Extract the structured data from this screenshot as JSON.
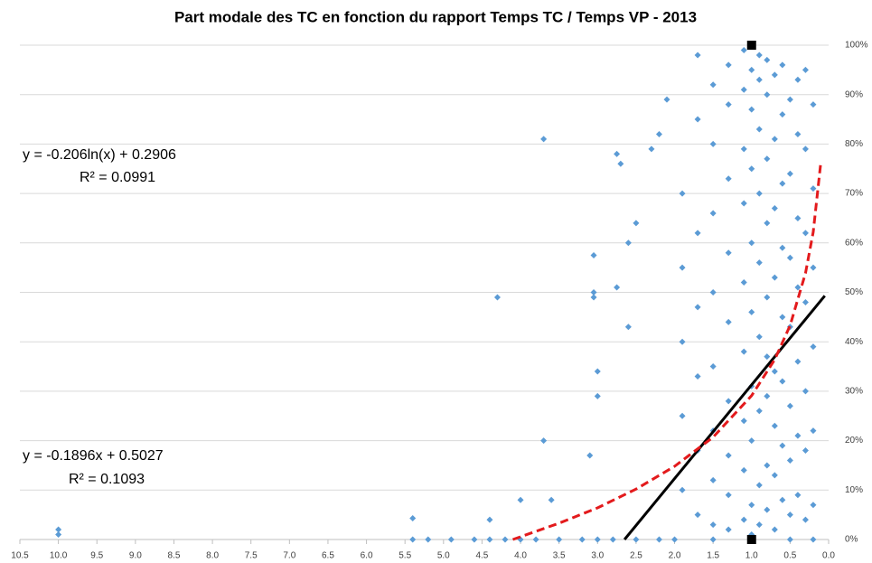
{
  "chart_data": {
    "type": "scatter",
    "title": "Part modale des TC en fonction du rapport Temps TC / Temps VP - 2013",
    "annotations": [
      "y = -0.206ln(x) + 0.2906",
      "R² = 0.0991",
      "y = -0.1896x + 0.5027",
      "R² = 0.1093"
    ],
    "xlim": [
      10.5,
      0
    ],
    "ylim": [
      0,
      100
    ],
    "grid": true,
    "xticks": [
      10.5,
      {
        "value": 10,
        "label": "10.0"
      },
      9.5,
      {
        "value": 9,
        "label": "9.0"
      },
      8.5,
      {
        "value": 8,
        "label": "8.0"
      },
      7.5,
      {
        "value": 7,
        "label": "7.0"
      },
      6.5,
      {
        "value": 6,
        "label": "6.0"
      },
      5.5,
      {
        "value": 5,
        "label": "5.0"
      },
      4.5,
      {
        "value": 4,
        "label": "4.0"
      },
      3.5,
      {
        "value": 3,
        "label": "3.0"
      },
      2.5,
      {
        "value": 2,
        "label": "2.0"
      },
      1.5,
      {
        "value": 1,
        "label": "1.0"
      },
      0.5,
      {
        "value": 0,
        "label": "0.0"
      }
    ],
    "yticks": [
      {
        "value": 0,
        "label": "0%"
      },
      {
        "value": 10,
        "label": "10%"
      },
      {
        "value": 20,
        "label": "20%"
      },
      {
        "value": 30,
        "label": "30%"
      },
      {
        "value": 40,
        "label": "40%"
      },
      {
        "value": 50,
        "label": "50%"
      },
      {
        "value": 60,
        "label": "60%"
      },
      {
        "value": 70,
        "label": "70%"
      },
      {
        "value": 80,
        "label": "80%"
      },
      {
        "value": 90,
        "label": "90%"
      },
      {
        "value": 100,
        "label": "100%"
      }
    ],
    "series": [
      {
        "mode": "markers",
        "marker": "diamond",
        "color": "#5b9bd5",
        "x": [
          10,
          10,
          5.4,
          4.3,
          3.7,
          3.05,
          3.05,
          3.05,
          2.75,
          2.7,
          2.75,
          2.3,
          2.2,
          2.1,
          1.7,
          3.0,
          3.0,
          3.1,
          3.7,
          4.0,
          4.4,
          3.6,
          2.6,
          2.6,
          2.5,
          5.4,
          5.2,
          4.9,
          4.6,
          4.4,
          4.2,
          4.0,
          3.8,
          3.5,
          3.2,
          3.0,
          2.8,
          2.5,
          2.2,
          2.0,
          1.5,
          1.0,
          0.5,
          0.2,
          1.9,
          1.9,
          1.9,
          1.9,
          1.9,
          1.7,
          1.7,
          1.7,
          1.7,
          1.7,
          1.7,
          1.5,
          1.5,
          1.5,
          1.5,
          1.5,
          1.5,
          1.5,
          1.5,
          1.3,
          1.3,
          1.3,
          1.3,
          1.3,
          1.3,
          1.3,
          1.3,
          1.3,
          1.1,
          1.1,
          1.1,
          1.1,
          1.1,
          1.1,
          1.1,
          1.1,
          1.1,
          1.0,
          1.0,
          1.0,
          1.0,
          1.0,
          1.0,
          1.0,
          1.0,
          1.0,
          0.9,
          0.9,
          0.9,
          0.9,
          0.9,
          0.9,
          0.9,
          0.9,
          0.9,
          0.8,
          0.8,
          0.8,
          0.8,
          0.8,
          0.8,
          0.8,
          0.8,
          0.8,
          0.7,
          0.7,
          0.7,
          0.7,
          0.7,
          0.7,
          0.7,
          0.7,
          0.6,
          0.6,
          0.6,
          0.6,
          0.6,
          0.6,
          0.6,
          0.6,
          0.5,
          0.5,
          0.5,
          0.5,
          0.5,
          0.5,
          0.5,
          0.4,
          0.4,
          0.4,
          0.4,
          0.4,
          0.4,
          0.4,
          0.3,
          0.3,
          0.3,
          0.3,
          0.3,
          0.3,
          0.3,
          0.2,
          0.2,
          0.2,
          0.2,
          0.2,
          0.2
        ],
        "values": [
          2,
          1,
          4.3,
          49,
          81,
          57.5,
          50,
          49,
          78,
          76,
          51,
          79,
          82,
          89,
          98,
          34,
          29,
          17,
          20,
          8,
          4,
          8,
          60,
          43,
          64,
          0,
          0,
          0,
          0,
          0,
          0,
          0,
          0,
          0,
          0,
          0,
          0,
          0,
          0,
          0,
          0,
          0,
          0,
          0,
          10,
          25,
          40,
          55,
          70,
          5,
          18,
          33,
          47,
          62,
          85,
          3,
          12,
          22,
          35,
          50,
          66,
          80,
          92,
          2,
          9,
          17,
          28,
          44,
          58,
          73,
          88,
          96,
          4,
          14,
          24,
          38,
          52,
          68,
          79,
          91,
          99,
          1,
          7,
          20,
          31,
          46,
          60,
          75,
          87,
          95,
          3,
          11,
          26,
          41,
          56,
          70,
          83,
          93,
          98,
          6,
          15,
          29,
          37,
          49,
          64,
          77,
          90,
          97,
          2,
          13,
          23,
          34,
          53,
          67,
          81,
          94,
          8,
          19,
          32,
          45,
          59,
          72,
          86,
          96,
          5,
          16,
          27,
          43,
          57,
          74,
          89,
          9,
          21,
          36,
          51,
          65,
          82,
          93,
          4,
          18,
          30,
          48,
          62,
          79,
          95,
          7,
          22,
          39,
          55,
          71,
          88
        ]
      },
      {
        "mode": "line",
        "color": "#000000",
        "x": [
          2.65,
          0.05
        ],
        "values": [
          0,
          49.3
        ]
      },
      {
        "mode": "line",
        "dash": true,
        "color": "#e31a1c",
        "x": [
          4.1,
          3.5,
          3,
          2.5,
          2,
          1.5,
          1,
          0.7,
          0.5,
          0.3,
          0.2,
          0.1
        ],
        "values": [
          0,
          3.3,
          6.4,
          10.2,
          14.8,
          20.7,
          29.1,
          36.4,
          43.3,
          53.9,
          62.2,
          76.5
        ]
      },
      {
        "mode": "markers",
        "marker": "square",
        "color": "#000000",
        "x": [
          1,
          1
        ],
        "values": [
          100,
          0
        ]
      }
    ]
  }
}
